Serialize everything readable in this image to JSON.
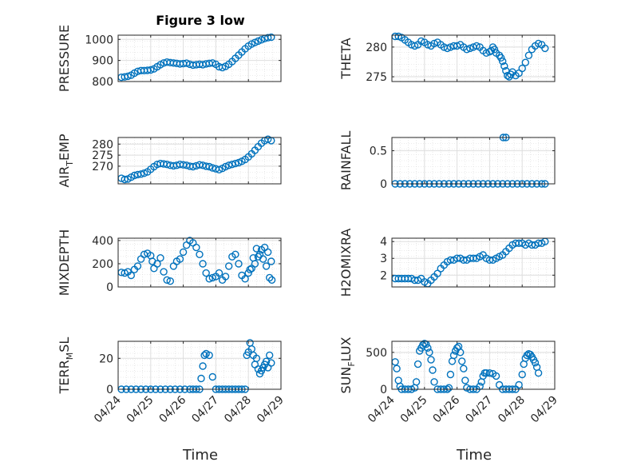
{
  "figure": {
    "title": "Figure 3 low",
    "xlabel": "Time",
    "marker_color": "#0072BD",
    "x_ticks": [
      "04/24",
      "04/25",
      "04/26",
      "04/27",
      "04/28",
      "04/29"
    ]
  },
  "chart_data": [
    {
      "type": "scatter",
      "name": "pressure",
      "ylabel": "PRESSURE",
      "xlim": [
        0,
        5
      ],
      "ylim": [
        800,
        1020
      ],
      "yticks": [
        800,
        900,
        1000
      ],
      "show_x_ticks": false,
      "x": [
        0.1,
        0.2,
        0.3,
        0.4,
        0.5,
        0.6,
        0.7,
        0.8,
        0.9,
        1.0,
        1.1,
        1.2,
        1.3,
        1.4,
        1.5,
        1.6,
        1.7,
        1.8,
        1.9,
        2.0,
        2.1,
        2.2,
        2.3,
        2.4,
        2.5,
        2.6,
        2.7,
        2.8,
        2.9,
        3.0,
        3.1,
        3.2,
        3.3,
        3.4,
        3.5,
        3.6,
        3.7,
        3.8,
        3.9,
        4.0,
        4.1,
        4.2,
        4.3,
        4.4,
        4.5,
        4.6,
        4.7
      ],
      "y": [
        820,
        822,
        825,
        830,
        840,
        848,
        852,
        852,
        853,
        855,
        860,
        870,
        880,
        888,
        892,
        890,
        888,
        886,
        884,
        885,
        887,
        882,
        878,
        880,
        882,
        880,
        884,
        886,
        888,
        882,
        870,
        866,
        872,
        882,
        895,
        910,
        925,
        940,
        955,
        968,
        978,
        985,
        992,
        998,
        1004,
        1008,
        1010
      ]
    },
    {
      "type": "scatter",
      "name": "theta",
      "ylabel": "THETA",
      "xlim": [
        0,
        5
      ],
      "ylim": [
        274.2,
        282
      ],
      "yticks": [
        275,
        280
      ],
      "show_x_ticks": false,
      "x": [
        0.1,
        0.2,
        0.3,
        0.4,
        0.5,
        0.6,
        0.7,
        0.8,
        0.9,
        1.0,
        1.1,
        1.2,
        1.3,
        1.4,
        1.5,
        1.6,
        1.7,
        1.8,
        1.9,
        2.0,
        2.1,
        2.2,
        2.3,
        2.4,
        2.5,
        2.6,
        2.7,
        2.8,
        2.9,
        3.0,
        3.05,
        3.1,
        3.15,
        3.2,
        3.3,
        3.35,
        3.4,
        3.45,
        3.5,
        3.55,
        3.6,
        3.65,
        3.7,
        3.8,
        3.9,
        4.0,
        4.1,
        4.2,
        4.3,
        4.4,
        4.5,
        4.6,
        4.7
      ],
      "y": [
        281.8,
        281.8,
        281.6,
        281.2,
        280.8,
        280.4,
        280.2,
        280.4,
        281.0,
        280.8,
        280.4,
        280.2,
        280.6,
        280.8,
        280.4,
        280.0,
        279.8,
        280.0,
        280.2,
        280.2,
        280.4,
        280.0,
        279.6,
        279.8,
        280.0,
        280.2,
        280.0,
        279.4,
        279.0,
        279.2,
        279.4,
        280.0,
        279.6,
        279.0,
        278.6,
        278.2,
        277.6,
        276.8,
        276.0,
        275.2,
        275.0,
        275.4,
        275.8,
        275.2,
        275.6,
        276.4,
        277.4,
        278.6,
        279.6,
        280.2,
        280.6,
        280.4,
        279.8
      ]
    },
    {
      "type": "scatter",
      "name": "air_temp",
      "ylabel": "AIR_TEMP",
      "xlim": [
        0,
        5
      ],
      "ylim": [
        262,
        283
      ],
      "yticks": [
        270,
        275,
        280
      ],
      "show_x_ticks": false,
      "x": [
        0.1,
        0.2,
        0.3,
        0.4,
        0.5,
        0.6,
        0.7,
        0.8,
        0.9,
        1.0,
        1.1,
        1.2,
        1.3,
        1.4,
        1.5,
        1.6,
        1.7,
        1.8,
        1.9,
        2.0,
        2.1,
        2.2,
        2.3,
        2.4,
        2.5,
        2.6,
        2.7,
        2.8,
        2.9,
        3.0,
        3.1,
        3.2,
        3.3,
        3.4,
        3.5,
        3.6,
        3.7,
        3.8,
        3.9,
        4.0,
        4.1,
        4.2,
        4.3,
        4.4,
        4.5,
        4.6,
        4.7
      ],
      "y": [
        264.5,
        264.0,
        264.2,
        265.0,
        265.8,
        266.2,
        266.4,
        266.8,
        267.4,
        268.6,
        269.8,
        270.8,
        271.2,
        271.0,
        270.8,
        270.4,
        270.2,
        270.4,
        270.8,
        270.6,
        270.4,
        270.0,
        269.8,
        270.2,
        270.6,
        270.4,
        270.0,
        269.8,
        269.2,
        268.8,
        268.4,
        269.0,
        269.8,
        270.4,
        270.8,
        271.2,
        271.6,
        272.2,
        273.0,
        274.2,
        275.6,
        277.2,
        278.8,
        280.4,
        281.6,
        282.2,
        281.6
      ]
    },
    {
      "type": "scatter",
      "name": "rainfall",
      "ylabel": "RAINFALL",
      "xlim": [
        0,
        5
      ],
      "ylim": [
        0,
        0.7
      ],
      "yticks": [
        0,
        0.5
      ],
      "show_x_ticks": false,
      "x": [
        0.1,
        0.25,
        0.4,
        0.55,
        0.7,
        0.85,
        1.0,
        1.15,
        1.3,
        1.45,
        1.6,
        1.75,
        1.9,
        2.05,
        2.2,
        2.35,
        2.5,
        2.65,
        2.8,
        2.95,
        3.1,
        3.25,
        3.4,
        3.55,
        3.7,
        3.85,
        4.0,
        4.15,
        4.3,
        4.45,
        4.6,
        4.7,
        3.42,
        3.5
      ],
      "y": [
        0,
        0,
        0,
        0,
        0,
        0,
        0,
        0,
        0,
        0,
        0,
        0,
        0,
        0,
        0,
        0,
        0,
        0,
        0,
        0,
        0,
        0,
        0,
        0,
        0,
        0,
        0,
        0,
        0,
        0,
        0,
        0,
        0.7,
        0.7
      ]
    },
    {
      "type": "scatter",
      "name": "mixdepth",
      "ylabel": "MIXDEPTH",
      "xlim": [
        0,
        5
      ],
      "ylim": [
        0,
        420
      ],
      "yticks": [
        0,
        200,
        400
      ],
      "show_x_ticks": false,
      "x": [
        0.1,
        0.2,
        0.3,
        0.4,
        0.5,
        0.6,
        0.7,
        0.8,
        0.9,
        1.0,
        1.05,
        1.1,
        1.2,
        1.3,
        1.4,
        1.5,
        1.6,
        1.7,
        1.8,
        1.9,
        2.0,
        2.1,
        2.2,
        2.3,
        2.4,
        2.5,
        2.6,
        2.7,
        2.8,
        2.9,
        3.0,
        3.1,
        3.2,
        3.3,
        3.4,
        3.5,
        3.6,
        3.7,
        3.8,
        3.9,
        4.0,
        4.1,
        4.2,
        4.3,
        4.4,
        4.5,
        4.6,
        4.7
      ],
      "y": [
        125,
        120,
        130,
        100,
        150,
        180,
        240,
        280,
        290,
        270,
        220,
        160,
        200,
        250,
        130,
        60,
        50,
        180,
        220,
        240,
        300,
        360,
        400,
        380,
        340,
        280,
        200,
        120,
        70,
        80,
        90,
        120,
        60,
        90,
        180,
        260,
        280,
        200,
        100,
        70,
        120,
        160,
        200,
        260,
        320,
        340,
        300,
        220
      ],
      "x2": [
        4.05,
        4.15,
        4.25,
        4.35,
        4.45,
        4.55,
        4.65,
        4.72
      ],
      "y2": [
        150,
        250,
        330,
        280,
        240,
        180,
        80,
        60
      ]
    },
    {
      "type": "scatter",
      "name": "h2omixra",
      "ylabel": "H2OMIXRA",
      "xlim": [
        0,
        5
      ],
      "ylim": [
        1.3,
        4.2
      ],
      "yticks": [
        2,
        3,
        4
      ],
      "show_x_ticks": false,
      "x": [
        0.1,
        0.2,
        0.3,
        0.4,
        0.5,
        0.6,
        0.7,
        0.8,
        0.9,
        1.0,
        1.1,
        1.2,
        1.3,
        1.4,
        1.5,
        1.6,
        1.7,
        1.8,
        1.9,
        2.0,
        2.1,
        2.2,
        2.3,
        2.4,
        2.5,
        2.6,
        2.7,
        2.8,
        2.9,
        3.0,
        3.1,
        3.2,
        3.3,
        3.4,
        3.5,
        3.6,
        3.7,
        3.8,
        3.9,
        4.0,
        4.1,
        4.2,
        4.3,
        4.4,
        4.5,
        4.6,
        4.7
      ],
      "y": [
        1.8,
        1.8,
        1.8,
        1.8,
        1.8,
        1.8,
        1.7,
        1.7,
        1.8,
        1.6,
        1.5,
        1.7,
        1.9,
        2.1,
        2.4,
        2.6,
        2.8,
        2.9,
        2.9,
        3.0,
        3.0,
        2.9,
        2.9,
        3.0,
        3.0,
        3.0,
        3.1,
        3.2,
        3.0,
        2.9,
        2.9,
        3.0,
        3.1,
        3.2,
        3.4,
        3.6,
        3.8,
        3.9,
        3.9,
        3.9,
        3.8,
        3.9,
        3.8,
        3.8,
        3.9,
        3.9,
        4.0
      ]
    },
    {
      "type": "scatter",
      "name": "terr_msl",
      "ylabel": "TERR_MSL",
      "xlim": [
        0,
        5
      ],
      "ylim": [
        0,
        31
      ],
      "yticks": [
        0,
        20
      ],
      "show_x_ticks": true,
      "x": [
        0.1,
        0.25,
        0.4,
        0.55,
        0.7,
        0.85,
        1.0,
        1.15,
        1.3,
        1.45,
        1.6,
        1.75,
        1.9,
        2.05,
        2.2,
        2.3,
        2.4,
        2.5,
        2.55,
        2.6,
        2.65,
        2.7,
        2.8,
        2.9,
        3.0,
        3.1,
        3.2,
        3.3,
        3.4,
        3.5,
        3.6,
        3.7,
        3.8,
        3.9,
        3.95,
        4.0,
        4.05,
        4.1,
        4.15,
        4.2,
        4.25,
        4.3,
        4.35,
        4.4,
        4.45,
        4.5,
        4.55,
        4.6,
        4.65,
        4.7
      ],
      "y": [
        0,
        0,
        0,
        0,
        0,
        0,
        0,
        0,
        0,
        0,
        0,
        0,
        0,
        0,
        0,
        0,
        0,
        0,
        7,
        15,
        22,
        23,
        22,
        8,
        0,
        0,
        0,
        0,
        0,
        0,
        0,
        0,
        0,
        0,
        22,
        24,
        30,
        26,
        22,
        16,
        20,
        13,
        10,
        12,
        14,
        16,
        18,
        14,
        22,
        17
      ]
    },
    {
      "type": "scatter",
      "name": "sun_flux",
      "ylabel": "SUN_FLUX",
      "xlim": [
        0,
        5
      ],
      "ylim": [
        0,
        650
      ],
      "yticks": [
        0,
        500
      ],
      "show_x_ticks": true,
      "x": [
        0.1,
        0.15,
        0.2,
        0.25,
        0.3,
        0.4,
        0.5,
        0.6,
        0.7,
        0.75,
        0.8,
        0.85,
        0.9,
        0.95,
        1.0,
        1.05,
        1.1,
        1.15,
        1.2,
        1.25,
        1.3,
        1.4,
        1.5,
        1.6,
        1.7,
        1.75,
        1.8,
        1.85,
        1.9,
        1.95,
        2.0,
        2.05,
        2.1,
        2.15,
        2.2,
        2.25,
        2.3,
        2.4,
        2.5,
        2.6,
        2.7,
        2.75,
        2.8,
        2.85,
        2.9,
        3.0,
        3.1,
        3.2,
        3.3,
        3.4,
        3.5,
        3.6,
        3.7,
        3.8,
        3.9,
        4.0,
        4.05,
        4.1,
        4.15,
        4.2,
        4.25,
        4.3,
        4.35,
        4.4,
        4.45,
        4.5
      ],
      "y": [
        370,
        280,
        120,
        40,
        0,
        0,
        0,
        0,
        20,
        100,
        340,
        520,
        560,
        600,
        620,
        610,
        560,
        500,
        400,
        260,
        100,
        0,
        0,
        0,
        0,
        20,
        200,
        380,
        460,
        520,
        560,
        580,
        500,
        380,
        280,
        120,
        20,
        0,
        0,
        0,
        40,
        100,
        180,
        220,
        220,
        220,
        210,
        180,
        60,
        0,
        0,
        0,
        0,
        0,
        60,
        200,
        340,
        420,
        460,
        480,
        470,
        440,
        400,
        360,
        300,
        220
      ]
    }
  ]
}
